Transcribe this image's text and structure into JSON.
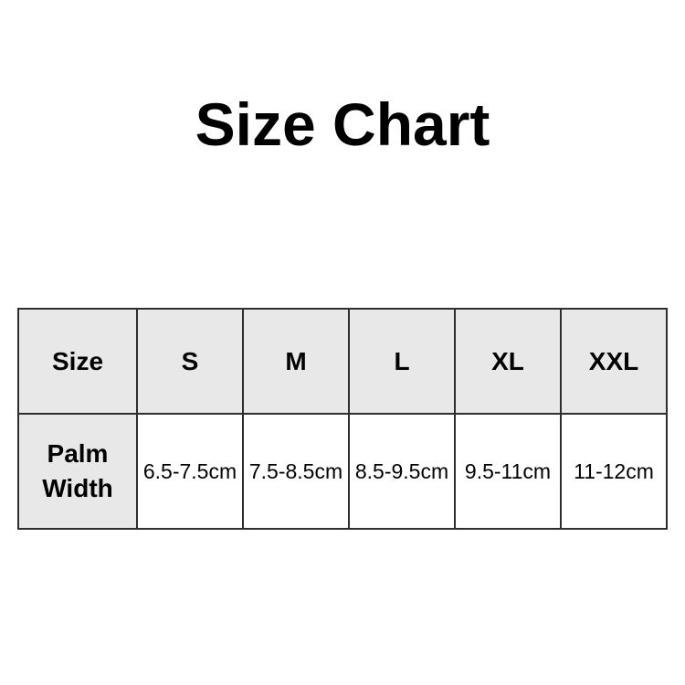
{
  "page": {
    "title": "Size Chart"
  },
  "colors": {
    "background": "#ffffff",
    "header_cell_background": "#e8e8e8",
    "table_border": "#2e2e2e",
    "text": "#000000"
  },
  "chart_data": {
    "type": "table",
    "title": "Size Chart",
    "columns": [
      "Size",
      "S",
      "M",
      "L",
      "XL",
      "XXL"
    ],
    "rows": [
      {
        "label": "Palm Width",
        "values": [
          "6.5-7.5cm",
          "7.5-8.5cm",
          "8.5-9.5cm",
          "9.5-11cm",
          "11-12cm"
        ]
      }
    ],
    "layout_hints": {
      "header_row_shaded": true,
      "row_label_column_shaded": true,
      "grid": true
    }
  }
}
